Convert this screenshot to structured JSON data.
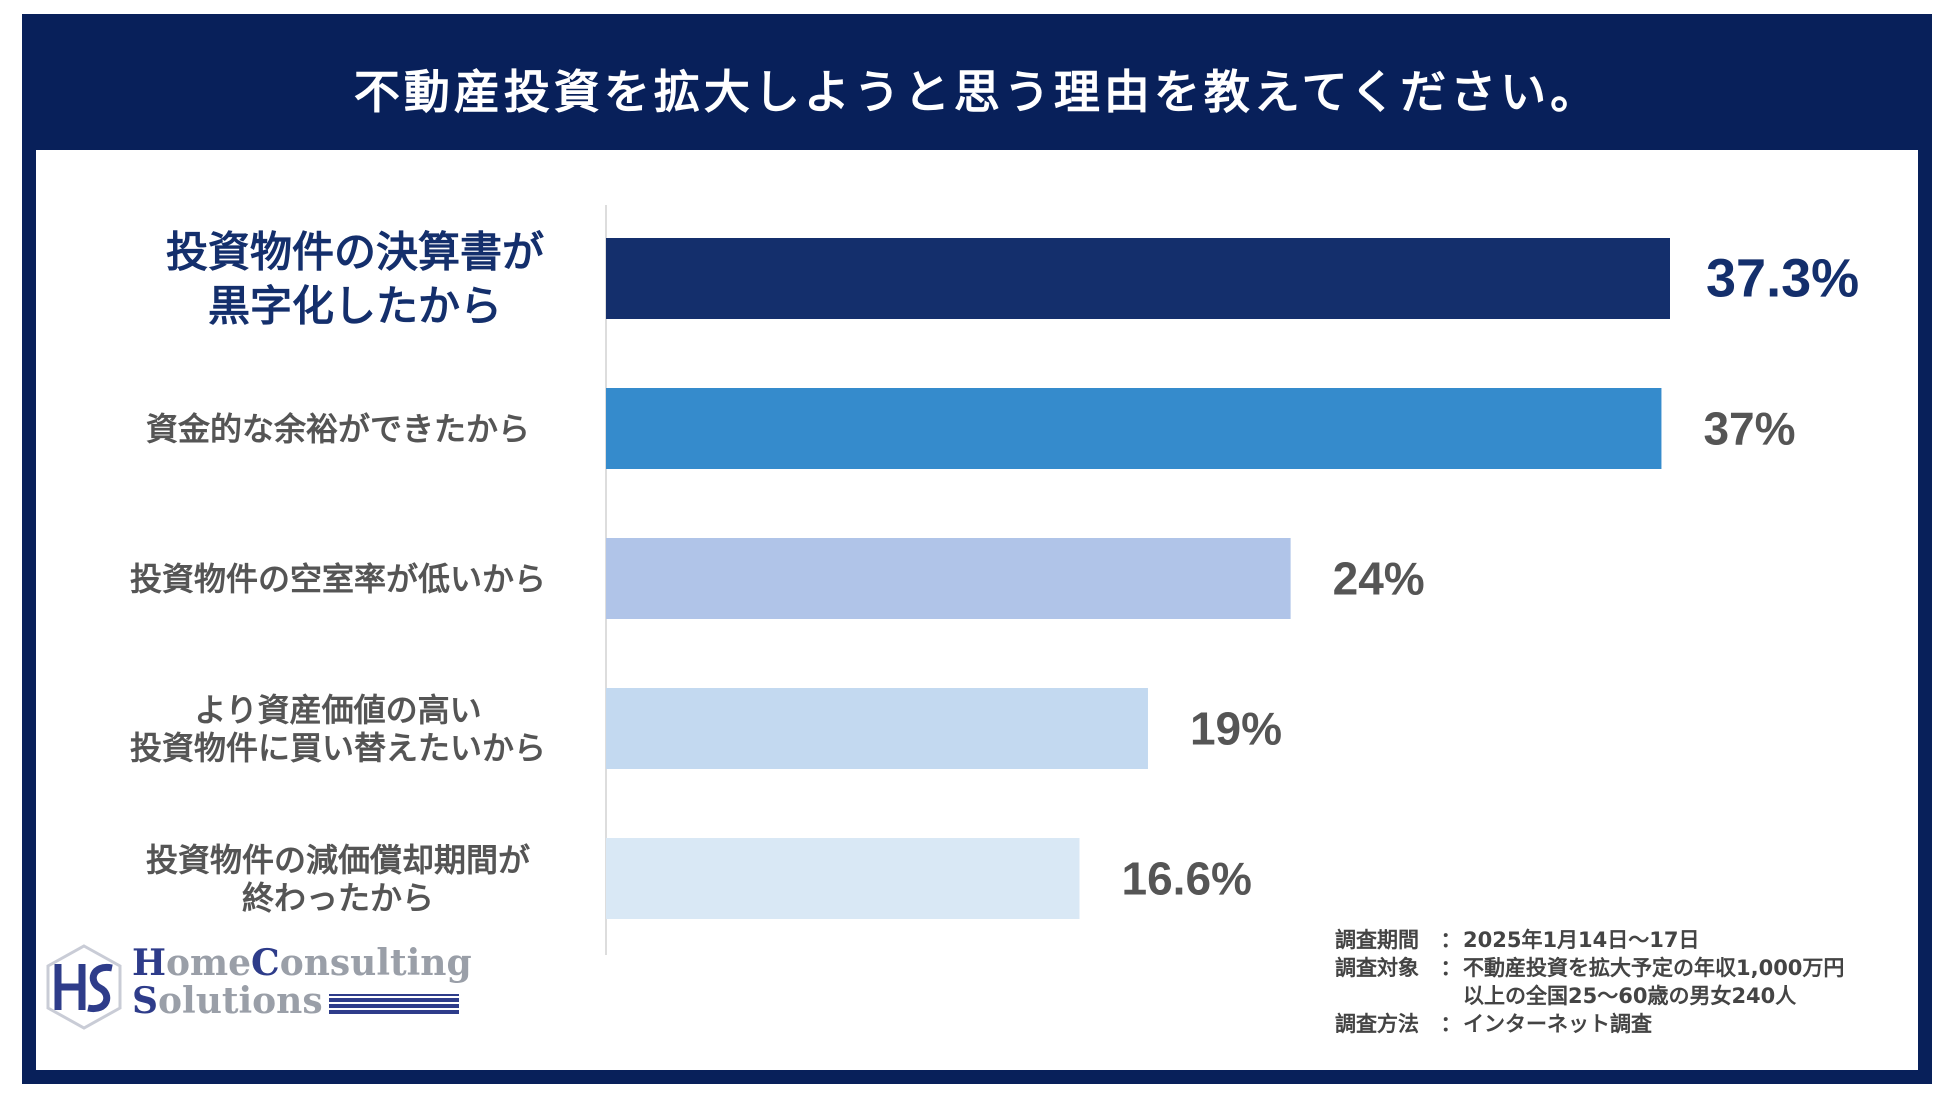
{
  "header": {
    "title": "不動産投資を拡大しようと思う理由を教えてください。"
  },
  "chart_data": {
    "type": "bar",
    "orientation": "horizontal",
    "title": "不動産投資を拡大しようと思う理由を教えてください。",
    "xlim": [
      0,
      40
    ],
    "categories": [
      [
        "投資物件の決算書が",
        "黒字化したから"
      ],
      [
        "資金的な余裕ができたから"
      ],
      [
        "投資物件の空室率が低いから"
      ],
      [
        "より資産価値の高い",
        "投資物件に買い替えたいから"
      ],
      [
        "投資物件の減価償却期間が",
        "終わったから"
      ]
    ],
    "values": [
      37.3,
      37,
      24,
      19,
      16.6
    ],
    "value_labels": [
      "37.3%",
      "37%",
      "24%",
      "19%",
      "16.6%"
    ],
    "bar_colors": [
      "#142f6c",
      "#358bcc",
      "#b0c4e8",
      "#c3d9f0",
      "#d9e8f5"
    ],
    "label_colors": [
      "#142f6c",
      "#555555",
      "#555555",
      "#555555",
      "#555555"
    ],
    "highlight_index": 0,
    "axis_color": "#dddddd"
  },
  "survey_notes": [
    {
      "label": "調査期間",
      "sep": "：",
      "value": "2025年1月14日～17日"
    },
    {
      "label": "調査対象",
      "sep": "：",
      "value": "不動産投資を拡大予定の年収1,000万円"
    },
    {
      "label": "",
      "sep": "",
      "value": "以上の全国25～60歳の男女240人"
    },
    {
      "label": "調査方法",
      "sep": "：",
      "value": "インターネット調査"
    }
  ],
  "logo": {
    "line1_cap": "H",
    "line1_a": "ome",
    "line1_cap2": "C",
    "line1_b": "onsulting",
    "line2_cap": "S",
    "line2_a": "olutions",
    "mark_color": "#2e3c8a",
    "text_color": "#9a9fa8"
  }
}
